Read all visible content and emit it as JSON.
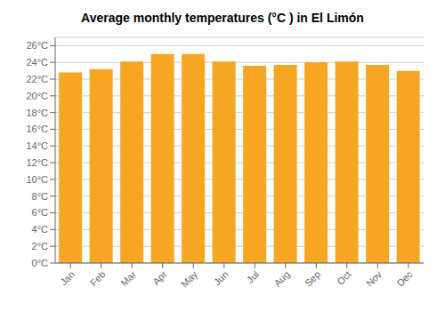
{
  "chart_data": {
    "type": "bar",
    "title": "Average monthly temperatures (°C ) in El Limón",
    "categories": [
      "Jan",
      "Feb",
      "Mar",
      "Apr",
      "May",
      "Jun",
      "Jul",
      "Aug",
      "Sep",
      "Oct",
      "Nov",
      "Dec"
    ],
    "values": [
      22.8,
      23.2,
      24.1,
      25.0,
      25.0,
      24.1,
      23.6,
      23.7,
      24.0,
      24.1,
      23.7,
      23.0
    ],
    "color": "#F5A623",
    "ylim": [
      0,
      27
    ],
    "yticks": [
      {
        "value": 0,
        "label": "0°C"
      },
      {
        "value": 2,
        "label": "2°C"
      },
      {
        "value": 4,
        "label": "4°C"
      },
      {
        "value": 6,
        "label": "6°C"
      },
      {
        "value": 8,
        "label": "8°C"
      },
      {
        "value": 10,
        "label": "10°C"
      },
      {
        "value": 12,
        "label": "12°C"
      },
      {
        "value": 14,
        "label": "14°C"
      },
      {
        "value": 16,
        "label": "16°C"
      },
      {
        "value": 18,
        "label": "18°C"
      },
      {
        "value": 20,
        "label": "20°C"
      },
      {
        "value": 22,
        "label": "22°C"
      },
      {
        "value": 24,
        "label": "24°C"
      },
      {
        "value": 26,
        "label": "26°C"
      }
    ],
    "grid": true
  }
}
